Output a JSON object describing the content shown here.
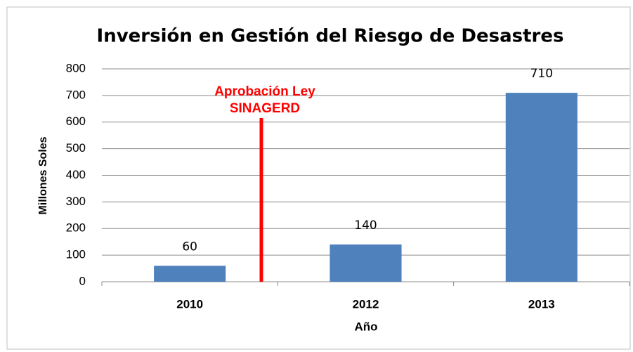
{
  "chart_data": {
    "type": "bar",
    "title": "Inversión en Gestión del Riesgo de Desastres",
    "categories": [
      "2010",
      "2012",
      "2013"
    ],
    "values": [
      60,
      140,
      710
    ],
    "color": "#4f81bd",
    "ylim": [
      0,
      800
    ],
    "yticks": [
      0,
      100,
      200,
      300,
      400,
      500,
      600,
      700,
      800
    ],
    "grid": true,
    "y_label": "Millones Soles",
    "x_label": "Año",
    "annotation": [
      "Aprobación Ley",
      "SINAGERD"
    ],
    "annotation_color": "#ff0000"
  }
}
